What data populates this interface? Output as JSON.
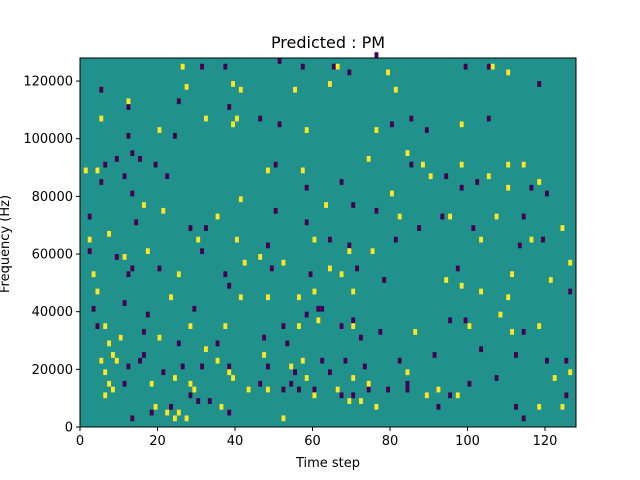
{
  "chart_data": {
    "type": "heatmap",
    "title": "Predicted : PM",
    "xlabel": "Time step",
    "ylabel": "Frequency (Hz)",
    "xlim": [
      0,
      128
    ],
    "ylim": [
      0,
      128000
    ],
    "xticks": [
      0,
      20,
      40,
      60,
      80,
      100,
      120
    ],
    "xtick_labels": [
      "0",
      "20",
      "40",
      "60",
      "80",
      "100",
      "120"
    ],
    "yticks": [
      0,
      20000,
      40000,
      60000,
      80000,
      100000,
      120000
    ],
    "ytick_labels": [
      "0",
      "20000",
      "40000",
      "60000",
      "80000",
      "100000",
      "120000"
    ],
    "n_time_steps": 128,
    "n_frequency_bins": 128,
    "freq_bin_hz": 1000,
    "grid": false,
    "legend": "none",
    "colormap": "viridis",
    "colors": {
      "low": "#440154",
      "mid": "#21918c",
      "high": "#fde725"
    },
    "background_level": "mid",
    "cells_high": [
      [
        26,
        124
      ],
      [
        66,
        124
      ],
      [
        79,
        122
      ],
      [
        106,
        124
      ],
      [
        110,
        122
      ],
      [
        39,
        118
      ],
      [
        64,
        118
      ],
      [
        12,
        112
      ],
      [
        27,
        117
      ],
      [
        41,
        116
      ],
      [
        55,
        116
      ],
      [
        81,
        116
      ],
      [
        39,
        104
      ],
      [
        40,
        106
      ],
      [
        58,
        102
      ],
      [
        76,
        102
      ],
      [
        98,
        104
      ],
      [
        5,
        106
      ],
      [
        20,
        102
      ],
      [
        32,
        106
      ],
      [
        74,
        92
      ],
      [
        84,
        94
      ],
      [
        88,
        90
      ],
      [
        98,
        90
      ],
      [
        110,
        90
      ],
      [
        114,
        90
      ],
      [
        48,
        88
      ],
      [
        57,
        88
      ],
      [
        90,
        86
      ],
      [
        105,
        86
      ],
      [
        41,
        78
      ],
      [
        80,
        80
      ],
      [
        110,
        82
      ],
      [
        118,
        84
      ],
      [
        4,
        88
      ],
      [
        1,
        88
      ],
      [
        16,
        76
      ],
      [
        21,
        74
      ],
      [
        35,
        72
      ],
      [
        82,
        72
      ],
      [
        95,
        72
      ],
      [
        107,
        72
      ],
      [
        63,
        76
      ],
      [
        2,
        64
      ],
      [
        7,
        66
      ],
      [
        17,
        60
      ],
      [
        30,
        64
      ],
      [
        40,
        64
      ],
      [
        60,
        64
      ],
      [
        103,
        64
      ],
      [
        116,
        64
      ],
      [
        124,
        68
      ],
      [
        11,
        58
      ],
      [
        42,
        56
      ],
      [
        46,
        58
      ],
      [
        52,
        56
      ],
      [
        69,
        60
      ],
      [
        75,
        60
      ],
      [
        126,
        56
      ],
      [
        3,
        52
      ],
      [
        25,
        52
      ],
      [
        64,
        54
      ],
      [
        67,
        52
      ],
      [
        94,
        50
      ],
      [
        111,
        52
      ],
      [
        121,
        50
      ],
      [
        4,
        46
      ],
      [
        23,
        44
      ],
      [
        41,
        44
      ],
      [
        48,
        44
      ],
      [
        56,
        44
      ],
      [
        60,
        46
      ],
      [
        70,
        46
      ],
      [
        98,
        48
      ],
      [
        103,
        46
      ],
      [
        110,
        44
      ],
      [
        20,
        30
      ],
      [
        28,
        34
      ],
      [
        37,
        34
      ],
      [
        56,
        34
      ],
      [
        61,
        36
      ],
      [
        70,
        34
      ],
      [
        86,
        32
      ],
      [
        100,
        34
      ],
      [
        108,
        38
      ],
      [
        111,
        32
      ],
      [
        118,
        34
      ],
      [
        6,
        34
      ],
      [
        7,
        28
      ],
      [
        10,
        30
      ],
      [
        8,
        24
      ],
      [
        9,
        22
      ],
      [
        5,
        22
      ],
      [
        6,
        18
      ],
      [
        7,
        14
      ],
      [
        8,
        12
      ],
      [
        6,
        10
      ],
      [
        32,
        26
      ],
      [
        35,
        22
      ],
      [
        38,
        18
      ],
      [
        39,
        16
      ],
      [
        47,
        24
      ],
      [
        54,
        20
      ],
      [
        57,
        22
      ],
      [
        70,
        16
      ],
      [
        74,
        14
      ],
      [
        84,
        18
      ],
      [
        92,
        12
      ],
      [
        97,
        10
      ],
      [
        122,
        16
      ],
      [
        126,
        18
      ],
      [
        18,
        14
      ],
      [
        24,
        16
      ],
      [
        28,
        14
      ],
      [
        29,
        12
      ],
      [
        19,
        6
      ],
      [
        22,
        4
      ],
      [
        24,
        2
      ],
      [
        25,
        4
      ],
      [
        27,
        2
      ],
      [
        36,
        6
      ],
      [
        43,
        12
      ],
      [
        48,
        12
      ],
      [
        52,
        2
      ],
      [
        60,
        10
      ],
      [
        69,
        8
      ],
      [
        72,
        8
      ],
      [
        76,
        6
      ],
      [
        89,
        10
      ],
      [
        118,
        6
      ],
      [
        124,
        6
      ],
      [
        58,
        16
      ],
      [
        66,
        12
      ]
    ],
    "cells_low": [
      [
        31,
        124
      ],
      [
        51,
        126
      ],
      [
        37,
        124
      ],
      [
        57,
        124
      ],
      [
        65,
        124
      ],
      [
        69,
        122
      ],
      [
        99,
        124
      ],
      [
        105,
        124
      ],
      [
        118,
        118
      ],
      [
        76,
        128
      ],
      [
        5,
        116
      ],
      [
        12,
        110
      ],
      [
        25,
        112
      ],
      [
        38,
        110
      ],
      [
        46,
        106
      ],
      [
        85,
        106
      ],
      [
        105,
        106
      ],
      [
        12,
        100
      ],
      [
        24,
        100
      ],
      [
        51,
        104
      ],
      [
        80,
        104
      ],
      [
        89,
        102
      ],
      [
        6,
        90
      ],
      [
        9,
        92
      ],
      [
        13,
        94
      ],
      [
        15,
        92
      ],
      [
        19,
        90
      ],
      [
        5,
        84
      ],
      [
        11,
        86
      ],
      [
        13,
        80
      ],
      [
        22,
        86
      ],
      [
        50,
        90
      ],
      [
        58,
        82
      ],
      [
        67,
        84
      ],
      [
        85,
        90
      ],
      [
        94,
        86
      ],
      [
        98,
        82
      ],
      [
        102,
        84
      ],
      [
        116,
        82
      ],
      [
        120,
        80
      ],
      [
        2,
        72
      ],
      [
        14,
        70
      ],
      [
        28,
        68
      ],
      [
        32,
        68
      ],
      [
        50,
        74
      ],
      [
        58,
        70
      ],
      [
        70,
        76
      ],
      [
        76,
        74
      ],
      [
        87,
        68
      ],
      [
        93,
        72
      ],
      [
        101,
        68
      ],
      [
        114,
        72
      ],
      [
        2,
        60
      ],
      [
        9,
        58
      ],
      [
        31,
        60
      ],
      [
        48,
        62
      ],
      [
        64,
        64
      ],
      [
        69,
        62
      ],
      [
        81,
        64
      ],
      [
        113,
        62
      ],
      [
        119,
        64
      ],
      [
        12,
        52
      ],
      [
        13,
        54
      ],
      [
        20,
        54
      ],
      [
        37,
        52
      ],
      [
        38,
        48
      ],
      [
        49,
        54
      ],
      [
        59,
        52
      ],
      [
        71,
        54
      ],
      [
        78,
        50
      ],
      [
        97,
        54
      ],
      [
        126,
        46
      ],
      [
        3,
        40
      ],
      [
        11,
        42
      ],
      [
        17,
        38
      ],
      [
        29,
        40
      ],
      [
        58,
        38
      ],
      [
        61,
        40
      ],
      [
        62,
        40
      ],
      [
        70,
        36
      ],
      [
        77,
        32
      ],
      [
        99,
        36
      ],
      [
        4,
        34
      ],
      [
        10,
        30
      ],
      [
        16,
        32
      ],
      [
        25,
        28
      ],
      [
        35,
        28
      ],
      [
        47,
        30
      ],
      [
        52,
        34
      ],
      [
        53,
        28
      ],
      [
        67,
        34
      ],
      [
        72,
        30
      ],
      [
        95,
        36
      ],
      [
        114,
        32
      ],
      [
        12,
        20
      ],
      [
        15,
        22
      ],
      [
        16,
        24
      ],
      [
        26,
        20
      ],
      [
        31,
        20
      ],
      [
        38,
        20
      ],
      [
        48,
        20
      ],
      [
        55,
        18
      ],
      [
        68,
        22
      ],
      [
        73,
        20
      ],
      [
        82,
        22
      ],
      [
        91,
        24
      ],
      [
        103,
        26
      ],
      [
        112,
        24
      ],
      [
        120,
        22
      ],
      [
        125,
        22
      ],
      [
        11,
        14
      ],
      [
        21,
        18
      ],
      [
        28,
        10
      ],
      [
        30,
        8
      ],
      [
        33,
        8
      ],
      [
        46,
        14
      ],
      [
        54,
        14
      ],
      [
        56,
        12
      ],
      [
        62,
        22
      ],
      [
        64,
        18
      ],
      [
        70,
        10
      ],
      [
        74,
        12
      ],
      [
        79,
        12
      ],
      [
        84,
        14
      ],
      [
        100,
        14
      ],
      [
        107,
        16
      ],
      [
        125,
        10
      ],
      [
        13,
        2
      ],
      [
        18,
        4
      ],
      [
        23,
        6
      ],
      [
        38,
        4
      ],
      [
        52,
        12
      ],
      [
        60,
        12
      ],
      [
        67,
        10
      ],
      [
        84,
        12
      ],
      [
        95,
        10
      ],
      [
        114,
        2
      ],
      [
        112,
        6
      ],
      [
        92,
        6
      ]
    ]
  }
}
